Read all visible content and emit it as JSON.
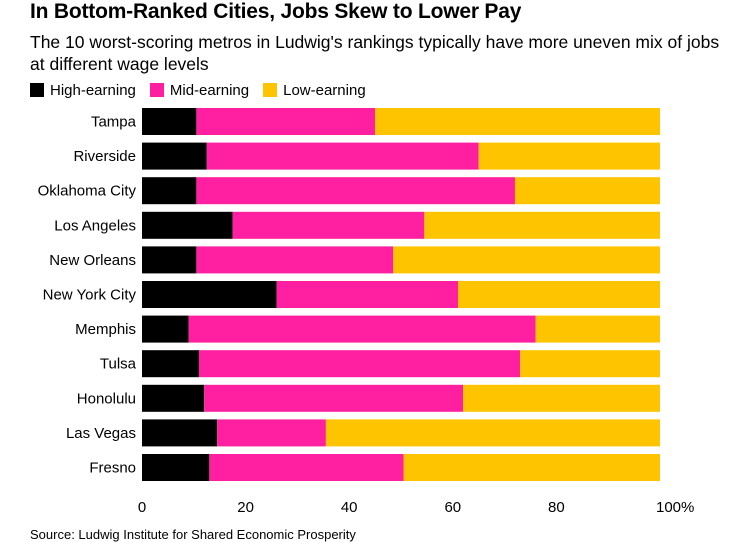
{
  "title": "In Bottom-Ranked Cities, Jobs Skew to Lower Pay",
  "subtitle": "The 10 worst-scoring metros in Ludwig's rankings typically have more uneven mix of jobs at different wage levels",
  "source": "Source: Ludwig Institute for Shared Economic Prosperity",
  "colors": {
    "high": "#000000",
    "mid": "#ff1fa0",
    "low": "#ffc400"
  },
  "chart_data": {
    "type": "bar",
    "orientation": "horizontal",
    "stacked": true,
    "categories": [
      "Tampa",
      "Riverside",
      "Oklahoma City",
      "Los Angeles",
      "New Orleans",
      "New York City",
      "Memphis",
      "Tulsa",
      "Honolulu",
      "Las Vegas",
      "Fresno"
    ],
    "series": [
      {
        "name": "High-earning",
        "color": "#000000",
        "values": [
          10.5,
          12.5,
          10.5,
          17.5,
          10.5,
          26,
          9,
          11,
          12,
          14.5,
          13
        ]
      },
      {
        "name": "Mid-earning",
        "color": "#ff1fa0",
        "values": [
          34.5,
          52.5,
          61.5,
          37,
          38,
          35,
          67,
          62,
          50,
          21,
          37.5
        ]
      },
      {
        "name": "Low-earning",
        "color": "#ffc400",
        "values": [
          55,
          35,
          28,
          45.5,
          51.5,
          39,
          24,
          27,
          38,
          64.5,
          49.5
        ]
      }
    ],
    "xlim": [
      0,
      100
    ],
    "xticks": [
      "0",
      "20",
      "40",
      "60",
      "80",
      "100%"
    ],
    "legend_position": "top-left",
    "grid": false
  }
}
